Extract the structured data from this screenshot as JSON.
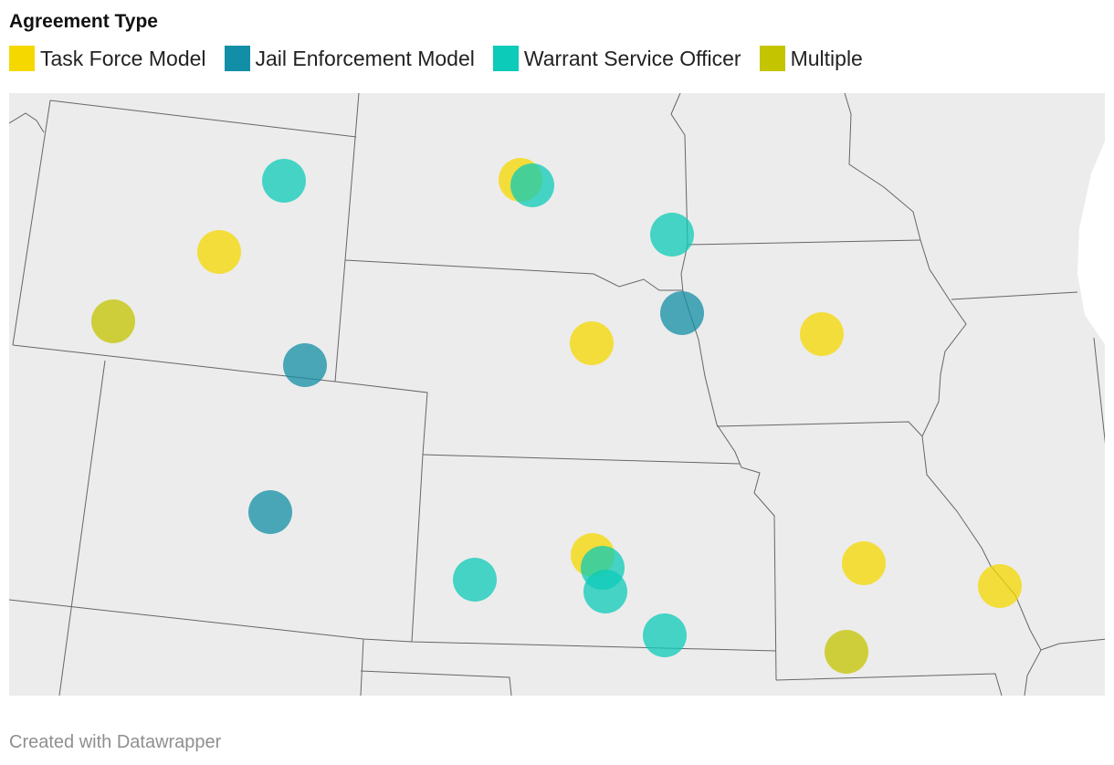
{
  "legend": {
    "title": "Agreement Type",
    "items": [
      {
        "label": "Task Force Model",
        "color": "#f5d800"
      },
      {
        "label": "Jail Enforcement Model",
        "color": "#128fa6"
      },
      {
        "label": "Warrant Service Officer",
        "color": "#0ccbb8"
      },
      {
        "label": "Multiple",
        "color": "#c4c400"
      }
    ]
  },
  "footer": "Created with Datawrapper"
}
